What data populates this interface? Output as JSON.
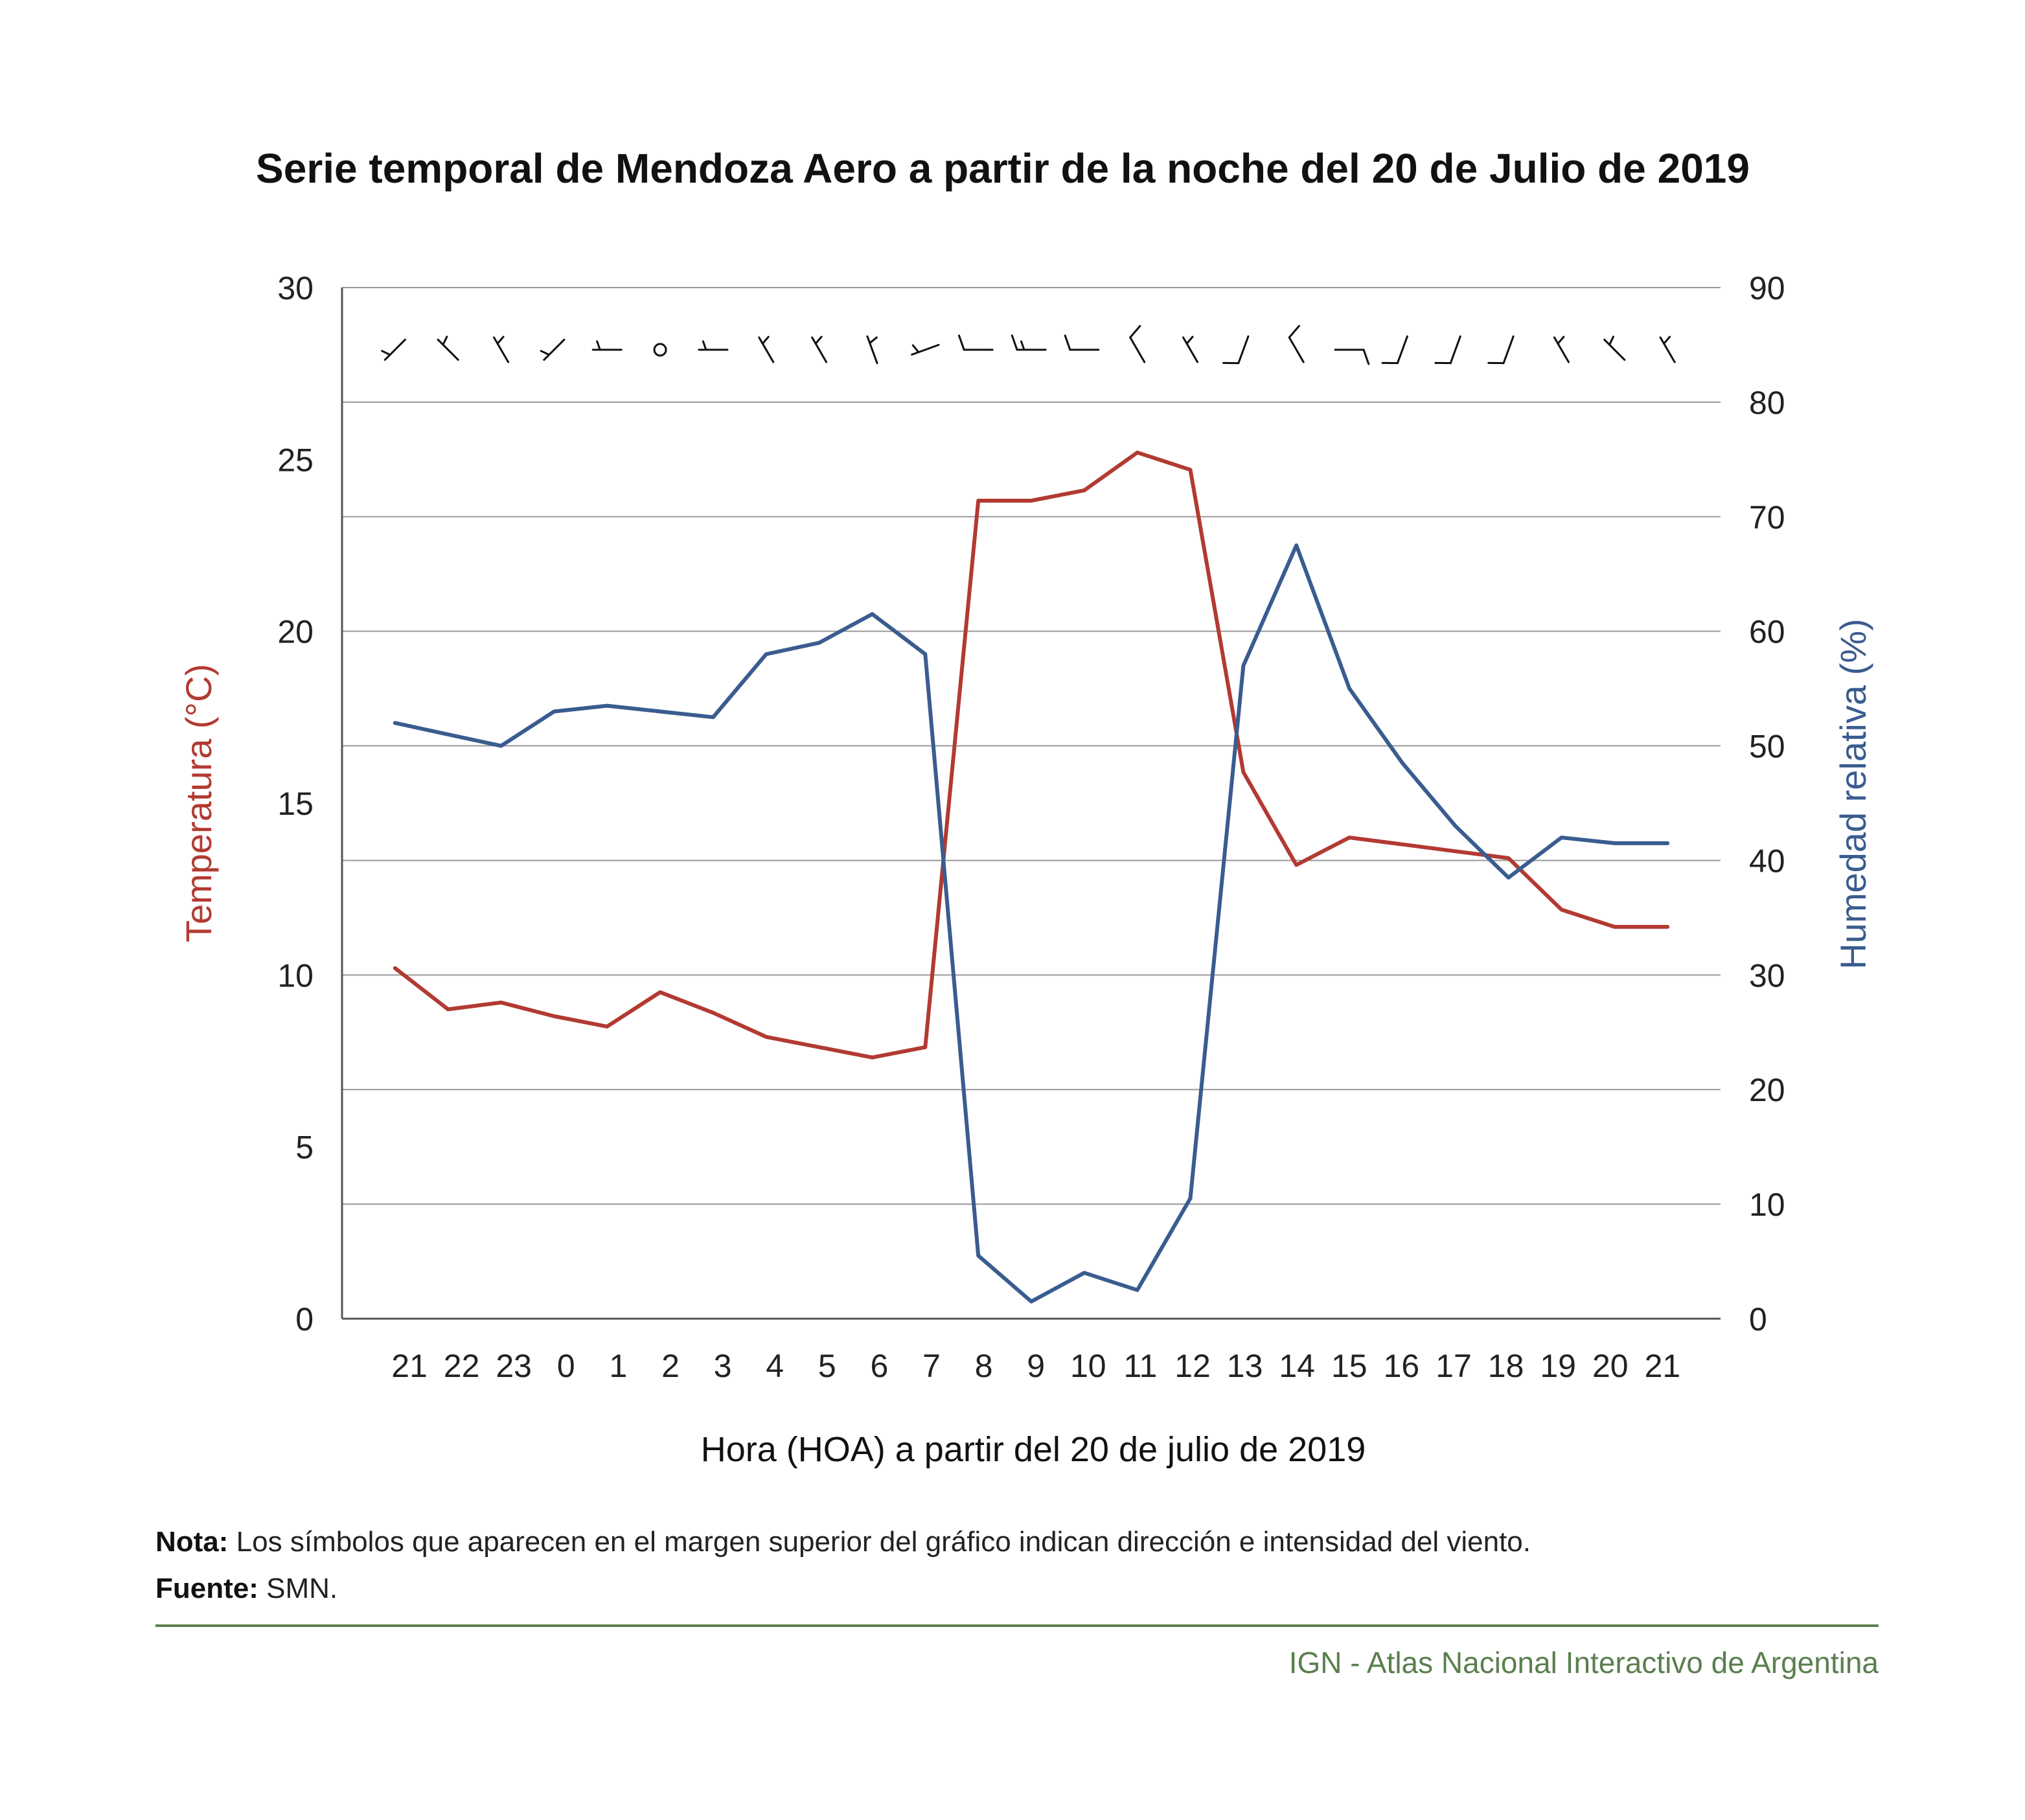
{
  "colors": {
    "temperature": "#b23a32",
    "humidity": "#3a5c8f",
    "grid": "#9a9a9a",
    "accent_green": "#5a7f4e"
  },
  "chart_data": {
    "type": "line",
    "title": "Serie temporal de Mendoza Aero a partir de la noche del 20 de Julio de 2019",
    "xlabel": "Hora (HOA) a partir del 20 de julio de 2019",
    "ylabel_left": "Temperatura (°C)",
    "ylabel_right": "Humedad relativa (%)",
    "categories": [
      "21",
      "22",
      "23",
      "0",
      "1",
      "2",
      "3",
      "4",
      "5",
      "6",
      "7",
      "8",
      "9",
      "10",
      "11",
      "12",
      "13",
      "14",
      "15",
      "16",
      "17",
      "18",
      "19",
      "20",
      "21"
    ],
    "ylim_left": [
      0,
      30
    ],
    "ylim_right": [
      0,
      90
    ],
    "yticks_left": [
      0,
      5,
      10,
      15,
      20,
      25,
      30
    ],
    "yticks_right": [
      0,
      10,
      20,
      30,
      40,
      50,
      60,
      70,
      80,
      90
    ],
    "grid": true,
    "series": [
      {
        "axis": "left",
        "color": "#b23a32",
        "values": [
          10.2,
          9.0,
          9.2,
          8.8,
          8.5,
          9.5,
          8.9,
          8.2,
          7.9,
          7.6,
          7.9,
          23.8,
          23.8,
          24.1,
          25.2,
          24.7,
          15.9,
          13.2,
          14.0,
          13.8,
          13.6,
          13.4,
          11.9,
          11.4,
          11.4
        ]
      },
      {
        "axis": "right",
        "color": "#3a5c8f",
        "values": [
          52,
          51,
          50,
          53,
          53.5,
          53,
          52.5,
          58,
          59,
          61.5,
          58,
          5.5,
          1.5,
          4,
          2.5,
          10.5,
          57,
          67.5,
          55,
          48.5,
          43,
          38.5,
          42,
          41.5,
          41.5
        ]
      }
    ],
    "wind_barbs": [
      {
        "dir": 225,
        "knots": 5
      },
      {
        "dir": 315,
        "knots": 5
      },
      {
        "dir": 330,
        "knots": 5
      },
      {
        "dir": 225,
        "knots": 5
      },
      {
        "dir": 270,
        "knots": 5
      },
      {
        "dir": 0,
        "knots": 0
      },
      {
        "dir": 270,
        "knots": 5
      },
      {
        "dir": 330,
        "knots": 5
      },
      {
        "dir": 330,
        "knots": 5
      },
      {
        "dir": 340,
        "knots": 5
      },
      {
        "dir": 250,
        "knots": 5
      },
      {
        "dir": 270,
        "knots": 10
      },
      {
        "dir": 270,
        "knots": 15
      },
      {
        "dir": 270,
        "knots": 10
      },
      {
        "dir": 330,
        "knots": 10
      },
      {
        "dir": 330,
        "knots": 5
      },
      {
        "dir": 200,
        "knots": 10
      },
      {
        "dir": 330,
        "knots": 10
      },
      {
        "dir": 90,
        "knots": 10
      },
      {
        "dir": 200,
        "knots": 10
      },
      {
        "dir": 200,
        "knots": 10
      },
      {
        "dir": 200,
        "knots": 10
      },
      {
        "dir": 330,
        "knots": 5
      },
      {
        "dir": 315,
        "knots": 5
      },
      {
        "dir": 330,
        "knots": 5
      }
    ]
  },
  "notes": {
    "nota_label": "Nota:",
    "nota_text": "Los símbolos que aparecen en el margen superior del gráfico indican dirección e intensidad del viento.",
    "fuente_label": "Fuente:",
    "fuente_text": "SMN."
  },
  "footer": {
    "credit": "IGN - Atlas Nacional Interactivo de Argentina"
  }
}
